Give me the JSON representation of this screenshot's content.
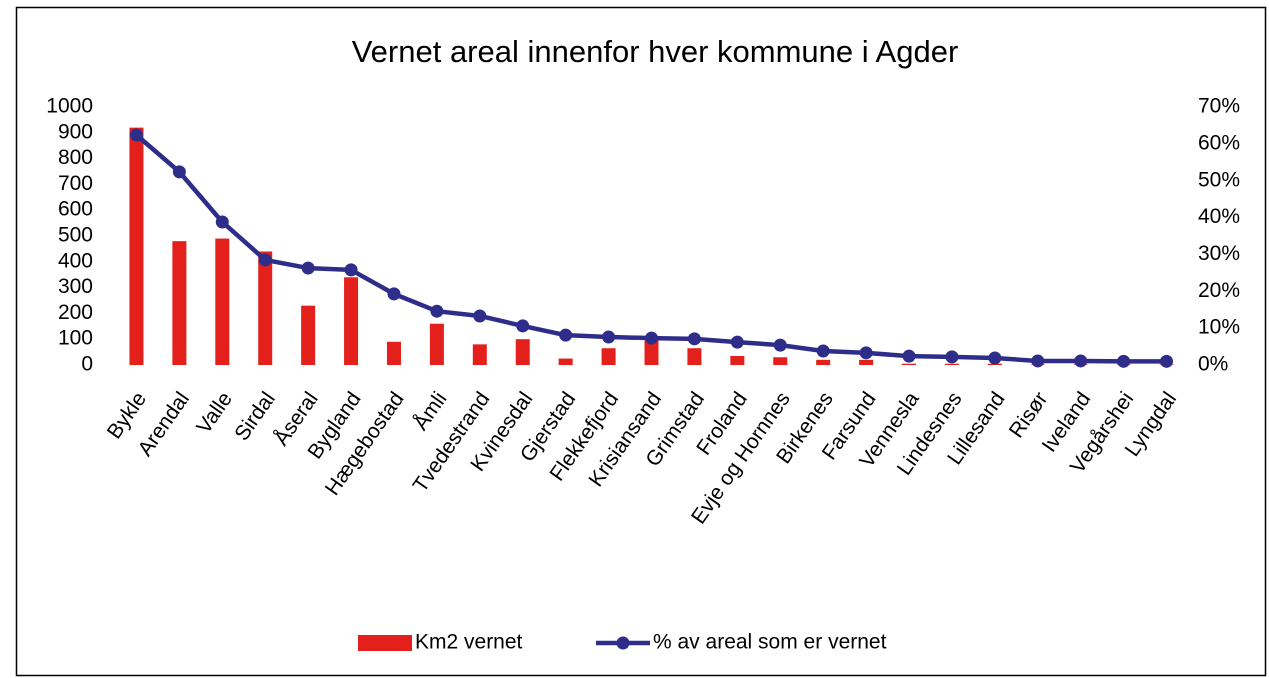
{
  "chart_data": {
    "type": "bar_line",
    "title": "Vernet areal innenfor hver kommune i Agder",
    "categories": [
      "Bykle",
      "Arendal",
      "Valle",
      "Sirdal",
      "Åseral",
      "Bygland",
      "Hægebostad",
      "Åmli",
      "Tvedestrand",
      "Kvinesdal",
      "Gjerstad",
      "Flekkefjord",
      "Krisiansand",
      "Grimstad",
      "Froland",
      "Evje og Hornnes",
      "Birkenes",
      "Farsund",
      "Vennesla",
      "Lindesnes",
      "Lillesand",
      "Risør",
      "Iveland",
      "Vegårshei",
      "Lyngdal"
    ],
    "series": [
      {
        "name": "Km2 vernet",
        "type": "bar",
        "color": "#e3201b",
        "values": [
          920,
          480,
          490,
          440,
          230,
          340,
          90,
          160,
          80,
          100,
          25,
          65,
          95,
          65,
          35,
          30,
          20,
          20,
          5,
          5,
          5,
          2,
          2,
          2,
          2
        ]
      },
      {
        "name": "% av areal som er vernet",
        "type": "line",
        "axis": "y2",
        "color": "#2e2e8a",
        "values": [
          62.4,
          52.4,
          38.8,
          28.5,
          26.3,
          25.8,
          19.3,
          14.6,
          13.3,
          10.6,
          8.1,
          7.6,
          7.3,
          7.1,
          6.2,
          5.4,
          3.8,
          3.3,
          2.4,
          2.2,
          1.9,
          1.1,
          1.1,
          1.0,
          1.0
        ]
      }
    ],
    "ylim": [
      0,
      1000
    ],
    "yticks": [
      0,
      100,
      200,
      300,
      400,
      500,
      600,
      700,
      800,
      900,
      1000
    ],
    "y2lim": [
      0,
      70
    ],
    "y2ticks": [
      {
        "value": 0,
        "label": "0%"
      },
      {
        "value": 10,
        "label": "10%"
      },
      {
        "value": 20,
        "label": "20%"
      },
      {
        "value": 30,
        "label": "30%"
      },
      {
        "value": 40,
        "label": "40%"
      },
      {
        "value": 50,
        "label": "50%"
      },
      {
        "value": 60,
        "label": "60%"
      },
      {
        "value": 70,
        "label": "70%"
      }
    ],
    "legend": "bottom"
  }
}
